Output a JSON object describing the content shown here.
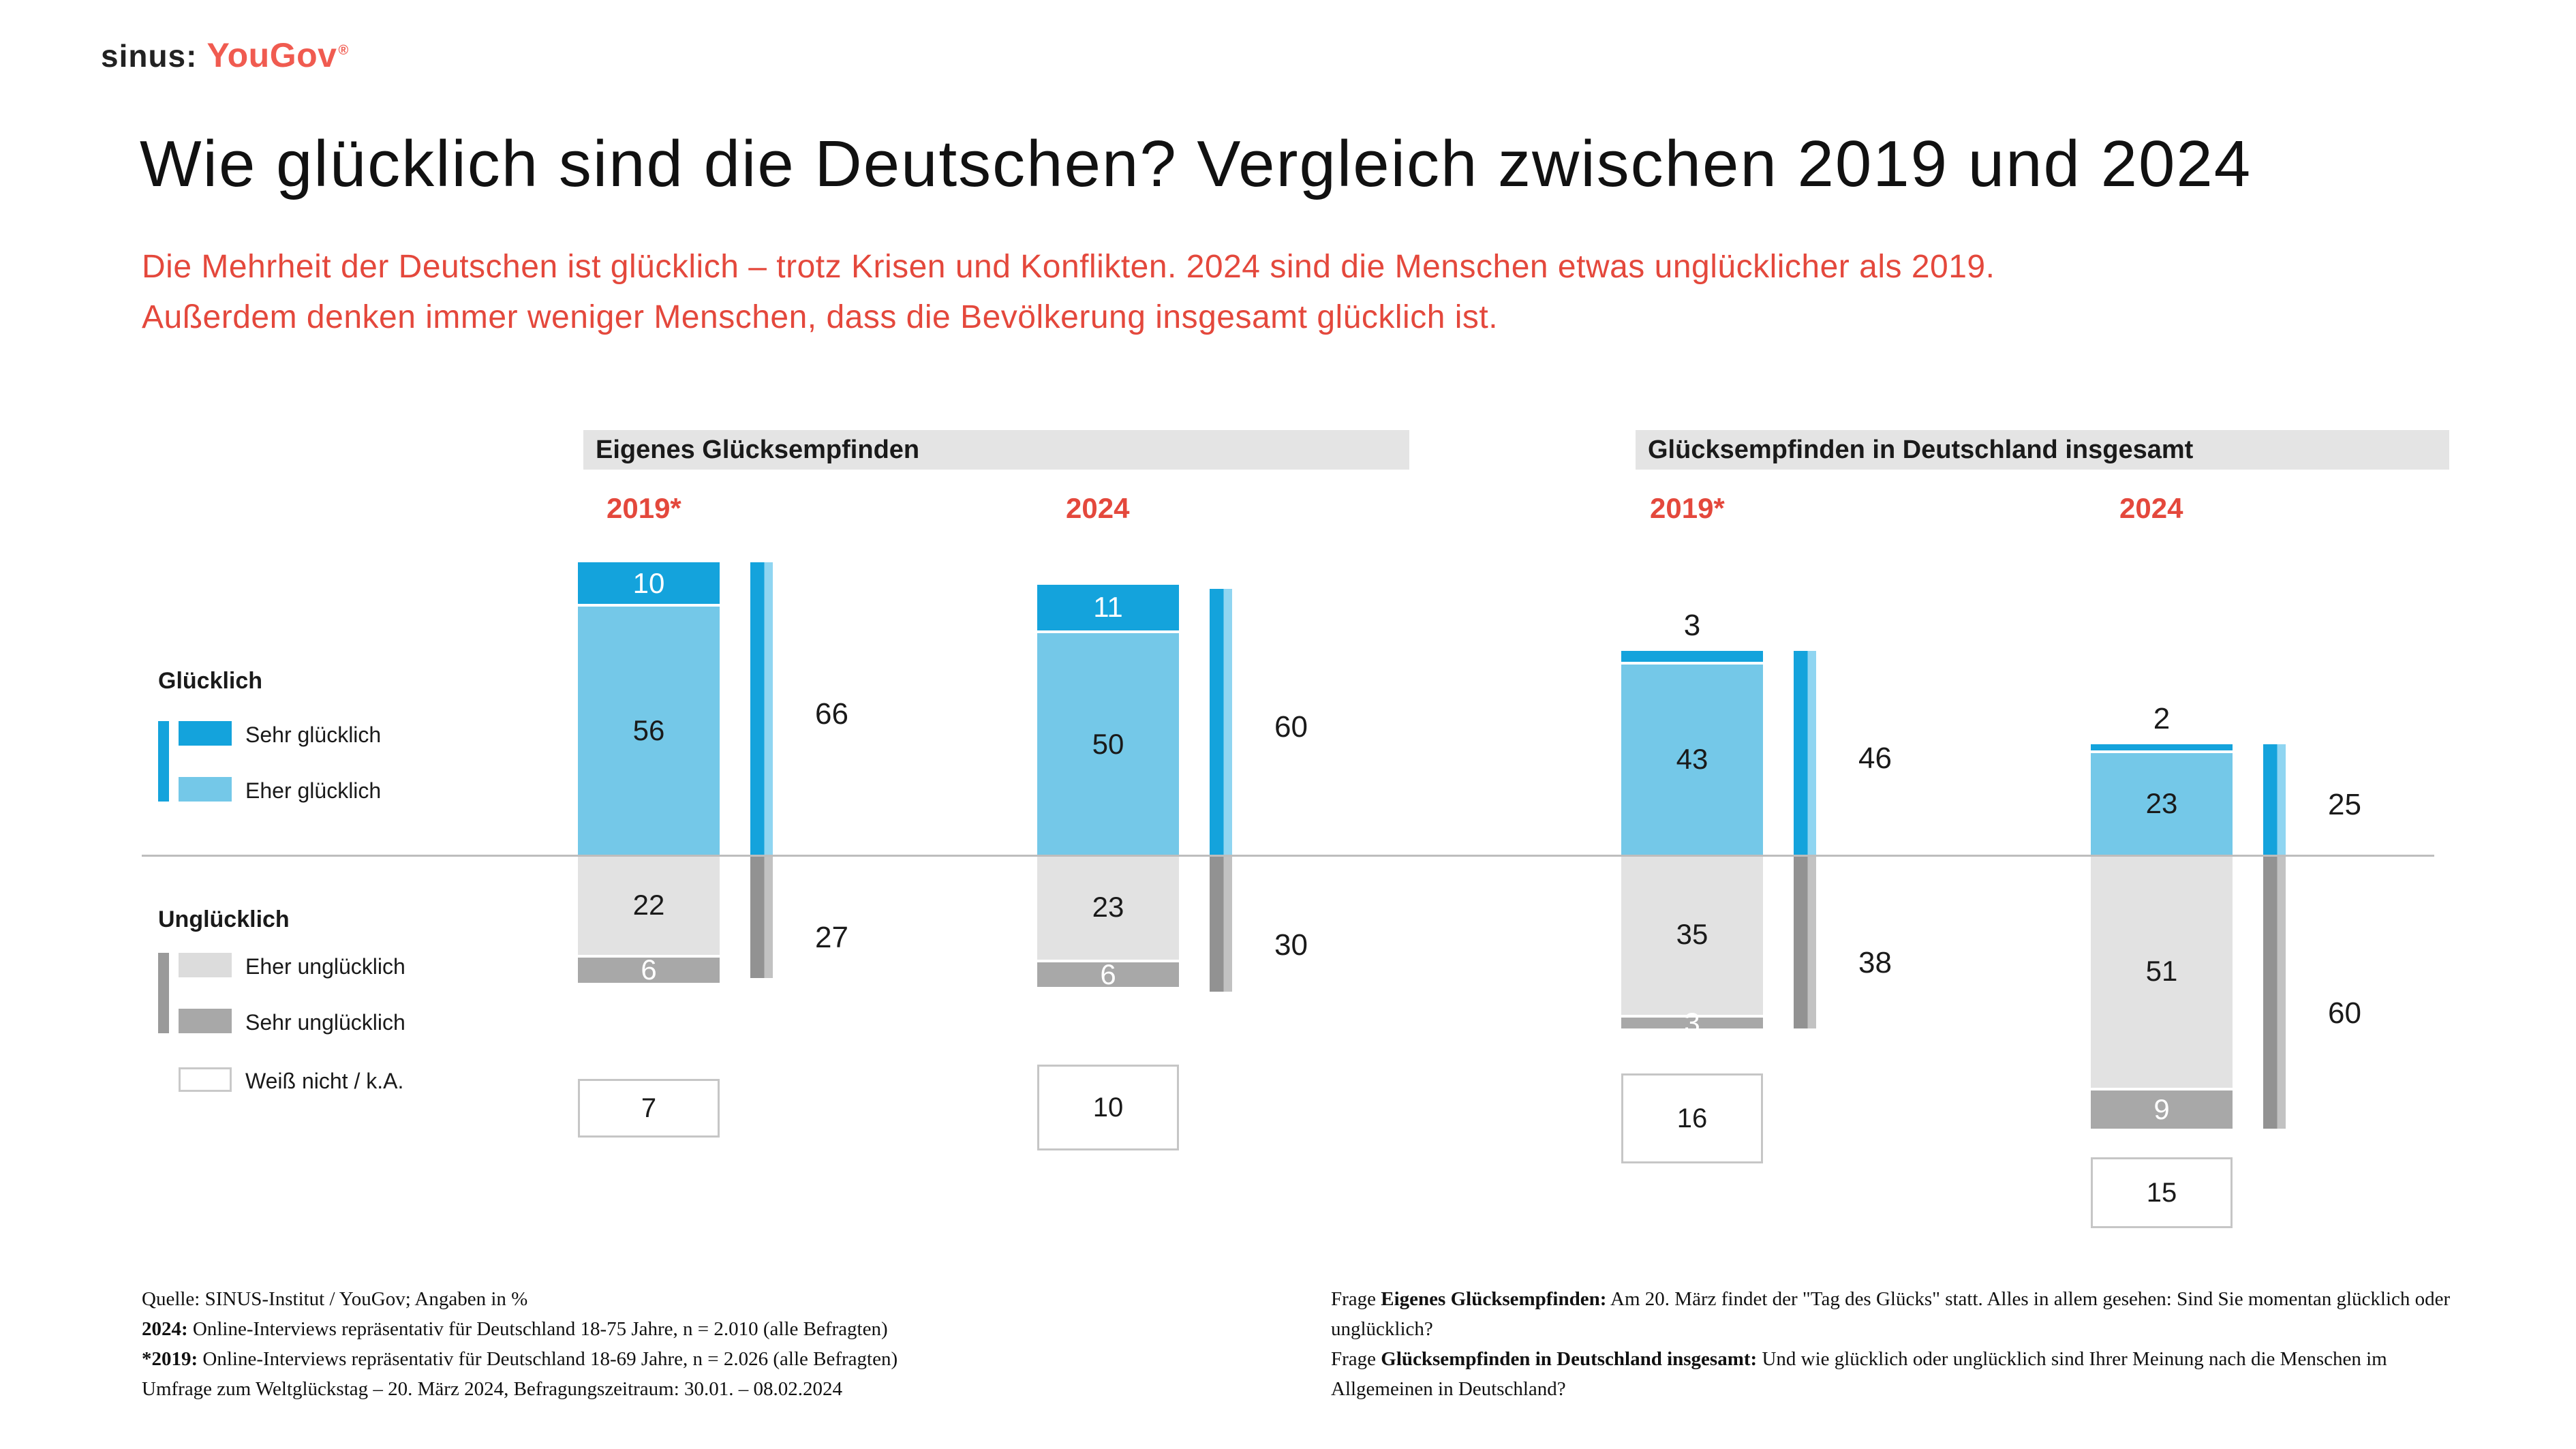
{
  "logo": {
    "sinus": "sinus:",
    "yougov": "YouGov",
    "registered": "®"
  },
  "title": "Wie glücklich sind die Deutschen? Vergleich zwischen 2019 und 2024",
  "subtitle": {
    "line1": "Die Mehrheit der Deutschen ist glücklich – trotz Krisen und Konflikten. 2024 sind die Menschen etwas unglücklicher als 2019.",
    "line2": "Außerdem denken immer weniger Menschen, dass die Bevölkerung insgesamt glücklich ist."
  },
  "legend": {
    "gluecklich_title": "Glücklich",
    "sehr_gluecklich": "Sehr glücklich",
    "eher_gluecklich": "Eher glücklich",
    "ungluecklich_title": "Unglücklich",
    "eher_ungluecklich": "Eher unglücklich",
    "sehr_ungluecklich": "Sehr unglücklich",
    "weiss_nicht": "Weiß nicht / k.A."
  },
  "colors": {
    "blue": "#14A3DC",
    "light_blue": "#74C8E8",
    "light_gray": "#E2E2E2",
    "dark_gray": "#A8A8A8",
    "total_blue_light": "#8FD5F1",
    "total_gray": "#929292",
    "total_gray_light": "#C2C2C2",
    "red": "#E4483C",
    "logo_red": "#F05B50",
    "header_bg": "#E4E4E4",
    "baseline_gray": "#BDBDBD"
  },
  "chart_data": {
    "type": "bar",
    "subtype": "diverging-stacked-columns",
    "unit": "%",
    "title": "Wie glücklich sind die Deutschen? Vergleich zwischen 2019 und 2024",
    "legend_position": "left",
    "notes": "Angaben in %",
    "sections": [
      {
        "label": "Eigenes Glücksempfinden",
        "columns": [
          {
            "year": "2019*",
            "sehr_gluecklich": 10,
            "eher_gluecklich": 56,
            "gluecklich_gesamt": 66,
            "eher_ungluecklich": 22,
            "sehr_ungluecklich": 6,
            "ungluecklich_gesamt": 27,
            "weiss_nicht": 7
          },
          {
            "year": "2024",
            "sehr_gluecklich": 11,
            "eher_gluecklich": 50,
            "gluecklich_gesamt": 60,
            "eher_ungluecklich": 23,
            "sehr_ungluecklich": 6,
            "ungluecklich_gesamt": 30,
            "weiss_nicht": 10
          }
        ]
      },
      {
        "label": "Glücksempfinden in Deutschland insgesamt",
        "columns": [
          {
            "year": "2019*",
            "sehr_gluecklich": 3,
            "eher_gluecklich": 43,
            "gluecklich_gesamt": 46,
            "eher_ungluecklich": 35,
            "sehr_ungluecklich": 3,
            "ungluecklich_gesamt": 38,
            "weiss_nicht": 16
          },
          {
            "year": "2024",
            "sehr_gluecklich": 2,
            "eher_gluecklich": 23,
            "gluecklich_gesamt": 25,
            "eher_ungluecklich": 51,
            "sehr_ungluecklich": 9,
            "ungluecklich_gesamt": 60,
            "weiss_nicht": 15
          }
        ]
      }
    ]
  },
  "footnotes": {
    "left": {
      "lines": [
        [
          {
            "t": "Quelle: SINUS-Institut / YouGov; Angaben in %",
            "b": false
          }
        ],
        [
          {
            "t": "2024:",
            "b": true
          },
          {
            "t": " Online-Interviews repräsentativ für Deutschland 18-75 Jahre, n = 2.010 (alle Befragten)",
            "b": false
          }
        ],
        [
          {
            "t": "*2019:",
            "b": true
          },
          {
            "t": " Online-Interviews repräsentativ für Deutschland 18-69 Jahre, n = 2.026 (alle Befragten)",
            "b": false
          }
        ],
        [
          {
            "t": "Umfrage zum Weltglückstag – 20. März 2024, Befragungszeitraum: 30.01. – 08.02.2024",
            "b": false
          }
        ]
      ]
    },
    "right": {
      "lines": [
        [
          {
            "t": "Frage ",
            "b": false
          },
          {
            "t": "Eigenes Glücksempfinden:",
            "b": true
          },
          {
            "t": " Am 20. März findet der \"Tag des Glücks\" statt. Alles in allem gesehen: Sind Sie momentan glücklich oder unglücklich?",
            "b": false
          }
        ],
        [
          {
            "t": "Frage ",
            "b": false
          },
          {
            "t": "Glücksempfinden in Deutschland insgesamt:",
            "b": true
          },
          {
            "t": " Und wie glücklich oder unglücklich sind Ihrer Meinung nach die Menschen im Allgemeinen in Deutschland?",
            "b": false
          }
        ]
      ]
    }
  }
}
